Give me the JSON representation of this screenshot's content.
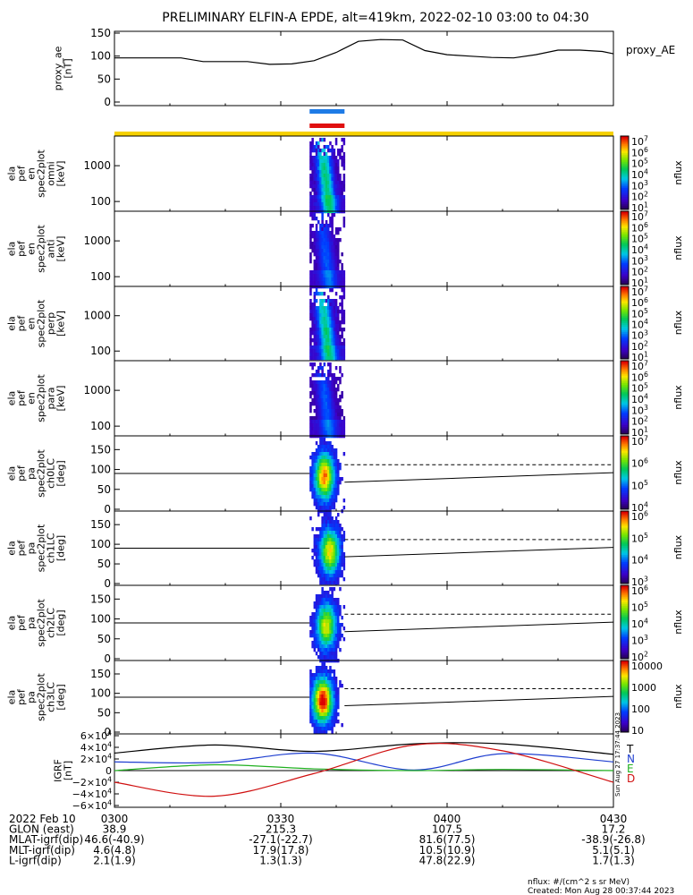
{
  "title": "PRELIMINARY ELFIN-A EPDE, alt=419km, 2022-02-10 03:00 to 04:30",
  "colors": {
    "sci_bar_blue": "#1e7be6",
    "sci_bar_red": "#e01010",
    "yellow_bar": "#f5d000",
    "bx": "#000000",
    "by": "#1f3fd0",
    "bz": "#20b020",
    "bd": "#d01010"
  },
  "time_axis": {
    "labels": [
      "0300",
      "0330",
      "0400",
      "0430"
    ],
    "start_min": 0,
    "end_min": 90
  },
  "panels": [
    {
      "labels": [
        "proxy_ae",
        "[nT]"
      ]
    },
    {
      "labels": [
        "ela",
        "pef",
        "en",
        "spec2plot",
        "omni",
        "[keV]"
      ]
    },
    {
      "labels": [
        "ela",
        "pef",
        "en",
        "spec2plot",
        "anti",
        "[keV]"
      ]
    },
    {
      "labels": [
        "ela",
        "pef",
        "en",
        "spec2plot",
        "perp",
        "[keV]"
      ]
    },
    {
      "labels": [
        "ela",
        "pef",
        "en",
        "spec2plot",
        "para",
        "[keV]"
      ]
    },
    {
      "labels": [
        "ela",
        "pef",
        "pa",
        "spec2plot",
        "ch0LC",
        "[deg]"
      ]
    },
    {
      "labels": [
        "ela",
        "pef",
        "pa",
        "spec2plot",
        "ch1LC",
        "[deg]"
      ]
    },
    {
      "labels": [
        "ela",
        "pef",
        "pa",
        "spec2plot",
        "ch2LC",
        "[deg]"
      ]
    },
    {
      "labels": [
        "ela",
        "pef",
        "pa",
        "spec2plot",
        "ch3LC",
        "[deg]"
      ]
    },
    {
      "labels": [
        "IGRF",
        "[nT]"
      ]
    }
  ],
  "colorbars": [
    {
      "ticks": [
        "10^7",
        "10^6",
        "10^5",
        "10^4",
        "10^3",
        "10^2",
        "10^1"
      ],
      "unit": "nflux"
    },
    {
      "ticks": [
        "10^7",
        "10^6",
        "10^5",
        "10^4",
        "10^3",
        "10^2",
        "10^1"
      ],
      "unit": "nflux"
    },
    {
      "ticks": [
        "10^7",
        "10^6",
        "10^5",
        "10^4",
        "10^3",
        "10^2",
        "10^1"
      ],
      "unit": "nflux"
    },
    {
      "ticks": [
        "10^7",
        "10^6",
        "10^5",
        "10^4",
        "10^3",
        "10^2",
        "10^1"
      ],
      "unit": "nflux"
    },
    {
      "ticks": [
        "10^7",
        "10^6",
        "10^5",
        "10^4"
      ],
      "unit": "nflux"
    },
    {
      "ticks": [
        "10^6",
        "10^5",
        "10^4",
        "10^3"
      ],
      "unit": "nflux"
    },
    {
      "ticks": [
        "10^6",
        "10^5",
        "10^4",
        "10^3",
        "10^2"
      ],
      "unit": "nflux"
    },
    {
      "ticks": [
        "10000",
        "1000",
        "100",
        "10"
      ],
      "unit": "nflux"
    }
  ],
  "chart_data": [
    {
      "type": "line",
      "name": "proxy_ae",
      "legend": "proxy_AE",
      "ylim": [
        0,
        150
      ],
      "yticks": [
        "0",
        "50",
        "100",
        "150"
      ],
      "x_min": [
        0,
        4,
        8,
        12,
        16,
        20,
        24,
        28,
        32,
        36,
        40,
        44,
        48,
        52,
        56,
        60,
        64,
        68,
        72,
        76,
        80,
        84,
        88,
        90
      ],
      "y": [
        96,
        96,
        96,
        96,
        88,
        88,
        88,
        82,
        83,
        90,
        108,
        132,
        136,
        135,
        112,
        103,
        100,
        97,
        96,
        103,
        113,
        113,
        110,
        105
      ]
    },
    {
      "type": "heatmap",
      "name": "energy spectrograms (omni, anti, perp, para)",
      "ylabel": "keV",
      "yscale": "log",
      "yticks": [
        "100",
        "1000"
      ],
      "ylim": [
        60,
        6000
      ],
      "data_window_min": [
        35.2,
        41.5
      ]
    },
    {
      "type": "heatmap",
      "name": "pitch-angle spectrograms (ch0LC, ch1LC, ch2LC, ch3LC)",
      "ylabel": "deg",
      "yticks": [
        "0",
        "50",
        "100",
        "150"
      ],
      "ylim": [
        0,
        180
      ],
      "reference_solid_deg": 90,
      "reference_dashed_deg": 112
    },
    {
      "type": "line",
      "name": "IGRF",
      "ylim": [
        -60000,
        60000
      ],
      "yticks": [
        "6×10^4",
        "4×10^4",
        "2×10^4",
        "0",
        "−2×10^4",
        "−4×10^4",
        "−6×10^4"
      ],
      "series": [
        {
          "name": "T",
          "values": [
            30000,
            44000,
            33000,
            46000,
            46000,
            28000
          ]
        },
        {
          "name": "N",
          "values": [
            15000,
            14000,
            30000,
            1000,
            29000,
            15000
          ]
        },
        {
          "name": "E",
          "values": [
            0,
            10000,
            3000,
            0,
            2000,
            0
          ]
        },
        {
          "name": "D",
          "values": [
            -20000,
            -44000,
            -5000,
            44000,
            34000,
            -20000
          ]
        }
      ],
      "x_min": [
        0,
        18,
        36,
        54,
        70,
        90
      ]
    }
  ],
  "footer": {
    "rows": [
      [
        "2022 Feb 10",
        "0300",
        "0330",
        "0400",
        "0430"
      ],
      [
        "GLON (east)",
        "38.9",
        "215.3",
        "107.5",
        "17.2"
      ],
      [
        "MLAT-igrf(dip)",
        "46.6(-40.9)",
        "-27.1(-22.7)",
        "81.6(77.5)",
        "-38.9(-26.8)"
      ],
      [
        "MLT-igrf(dip)",
        "4.6(4.8)",
        "17.9(17.8)",
        "10.5(10.9)",
        "5.1(5.1)"
      ],
      [
        "L-igrf(dip)",
        "2.1(1.9)",
        "1.3(1.3)",
        "47.8(22.9)",
        "1.7(1.3)"
      ]
    ],
    "units_note": "nflux: #/(cm^2 s sr MeV)",
    "created": "Created: Mon Aug 28 00:37:44 2023",
    "side_stamp": "Sun Aug 27 17:37:44 2023"
  }
}
